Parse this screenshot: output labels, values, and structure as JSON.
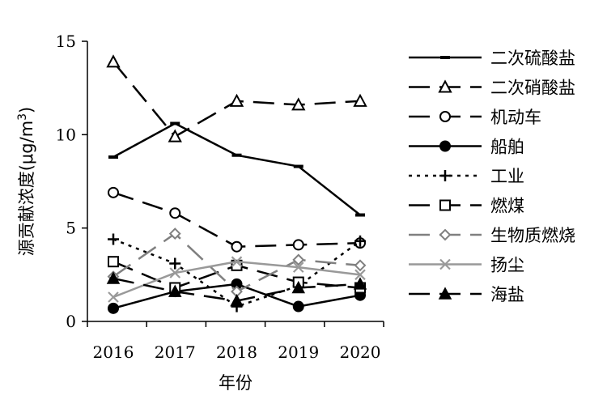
{
  "chart_data": {
    "type": "line",
    "title": "",
    "xlabel": "年份",
    "ylabel_main": "源贡献浓度(μg/m",
    "ylabel_sup": "3",
    "ylabel_close": ")",
    "categories": [
      "2016",
      "2017",
      "2018",
      "2019",
      "2020"
    ],
    "ylim": [
      0,
      15
    ],
    "yticks": [
      0,
      5,
      10,
      15
    ],
    "grid": false,
    "legend_position": "right",
    "series": [
      {
        "name": "二次硫酸盐",
        "values": [
          8.8,
          10.6,
          8.9,
          8.3,
          5.7
        ],
        "color": "#000000",
        "dash": "solid",
        "marker": "dash"
      },
      {
        "name": "二次硝酸盐",
        "values": [
          13.9,
          9.9,
          11.8,
          11.6,
          11.8
        ],
        "color": "#000000",
        "dash": "long",
        "marker": "triangle-open"
      },
      {
        "name": "机动车",
        "values": [
          6.9,
          5.8,
          4.0,
          4.1,
          4.2
        ],
        "color": "#000000",
        "dash": "long",
        "marker": "circle-open"
      },
      {
        "name": "船舶",
        "values": [
          0.7,
          1.6,
          2.0,
          0.8,
          1.4
        ],
        "color": "#000000",
        "dash": "solid",
        "marker": "circle-filled"
      },
      {
        "name": "工业",
        "values": [
          4.4,
          3.1,
          0.8,
          1.9,
          4.3
        ],
        "color": "#000000",
        "dash": "dot",
        "marker": "plus"
      },
      {
        "name": "燃煤",
        "values": [
          3.2,
          1.8,
          3.0,
          2.1,
          1.8
        ],
        "color": "#000000",
        "dash": "long",
        "marker": "square-open"
      },
      {
        "name": "生物质燃烧",
        "values": [
          2.4,
          4.7,
          1.6,
          3.3,
          3.0
        ],
        "color": "#808080",
        "dash": "long",
        "marker": "diamond"
      },
      {
        "name": "扬尘",
        "values": [
          1.3,
          2.6,
          3.2,
          2.9,
          2.5
        ],
        "color": "#999999",
        "dash": "solid",
        "marker": "x"
      },
      {
        "name": "海盐",
        "values": [
          2.3,
          1.6,
          1.1,
          1.8,
          2.0
        ],
        "color": "#000000",
        "dash": "long",
        "marker": "triangle-filled"
      }
    ]
  }
}
